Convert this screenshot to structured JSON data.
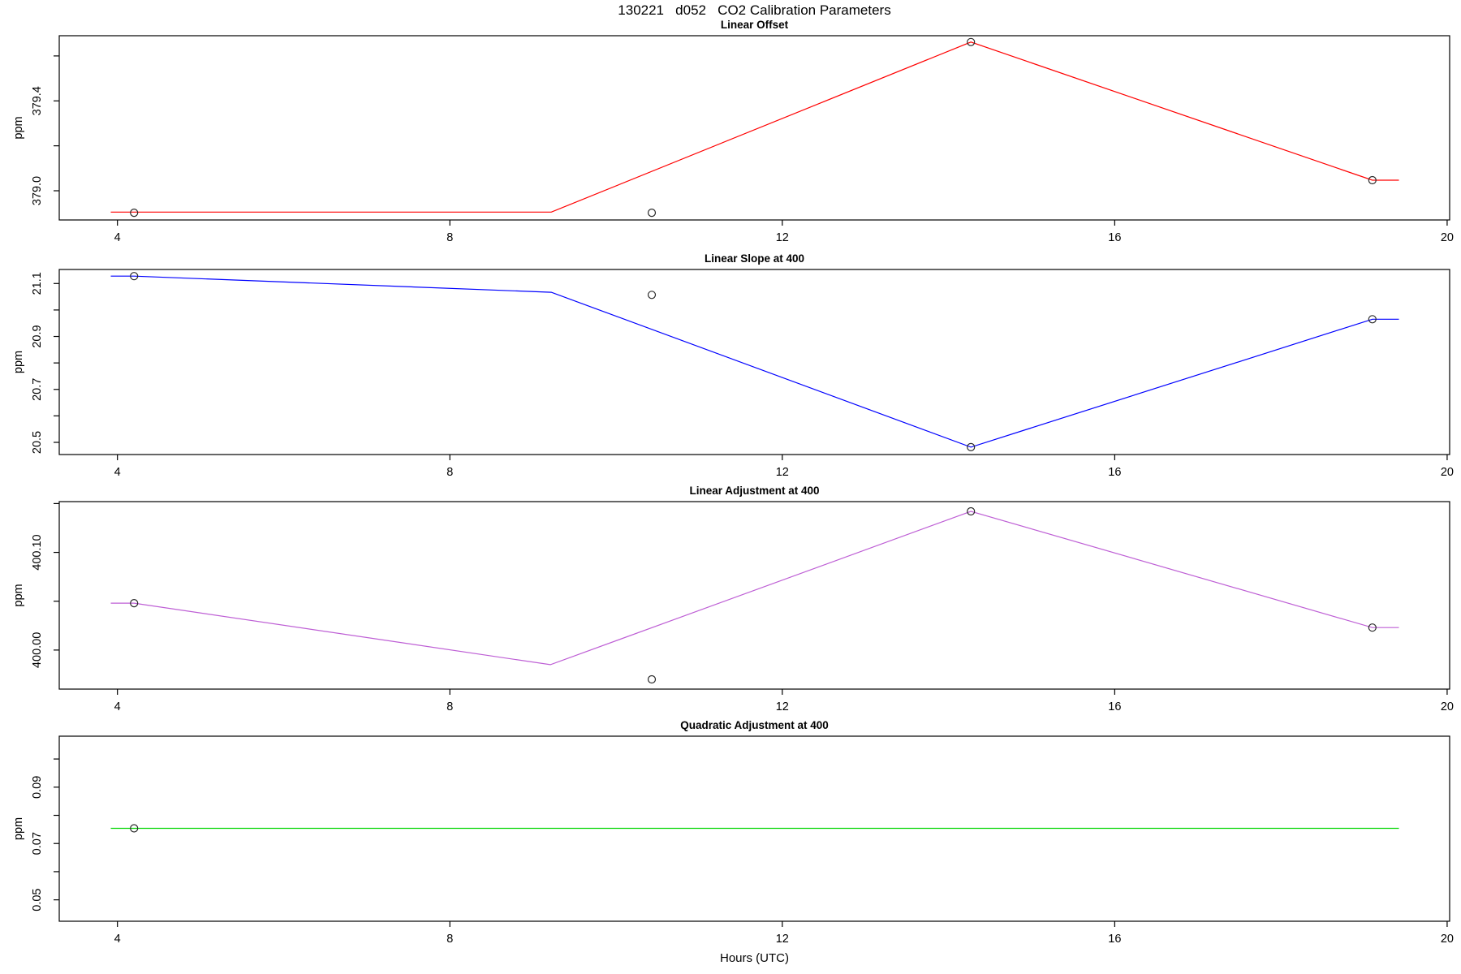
{
  "title": "130221   d052   CO2 Calibration Parameters",
  "xlabel": "Hours (UTC)",
  "chart_data": [
    {
      "type": "line",
      "title": "Linear Offset",
      "ylabel": "ppm",
      "line_color": "#ff0000",
      "point_color": "#2a2a2a",
      "grid": "off",
      "xlim": [
        3.3,
        20.03
      ],
      "ylim": [
        378.87,
        379.69
      ],
      "xticks": [
        {
          "v": 4,
          "label": "4"
        },
        {
          "v": 8,
          "label": "8"
        },
        {
          "v": 12,
          "label": "12"
        },
        {
          "v": 16,
          "label": "16"
        },
        {
          "v": 20,
          "label": "20"
        }
      ],
      "yticks": [
        {
          "v": 379.0,
          "label": "379.0"
        },
        {
          "v": 379.2,
          "label": ""
        },
        {
          "v": 379.4,
          "label": "379.4"
        },
        {
          "v": 379.6,
          "label": ""
        }
      ],
      "line_points": [
        [
          3.92,
          378.905
        ],
        [
          9.22,
          378.905
        ],
        [
          14.27,
          379.662
        ],
        [
          19.1,
          379.047
        ],
        [
          19.42,
          379.047
        ]
      ],
      "markers": [
        [
          4.2,
          378.902
        ],
        [
          10.43,
          378.902
        ],
        [
          14.27,
          379.662
        ],
        [
          19.1,
          379.047
        ]
      ]
    },
    {
      "type": "line",
      "title": "Linear Slope at 400",
      "ylabel": "ppm",
      "line_color": "#0000ff",
      "point_color": "#2a2a2a",
      "grid": "off",
      "xlim": [
        3.3,
        20.03
      ],
      "ylim": [
        20.454,
        21.153
      ],
      "xticks": [
        {
          "v": 4,
          "label": "4"
        },
        {
          "v": 8,
          "label": "8"
        },
        {
          "v": 12,
          "label": "12"
        },
        {
          "v": 16,
          "label": "16"
        },
        {
          "v": 20,
          "label": "20"
        }
      ],
      "yticks": [
        {
          "v": 20.5,
          "label": "20.5"
        },
        {
          "v": 20.6,
          "label": ""
        },
        {
          "v": 20.7,
          "label": "20.7"
        },
        {
          "v": 20.8,
          "label": ""
        },
        {
          "v": 20.9,
          "label": "20.9"
        },
        {
          "v": 21.0,
          "label": ""
        },
        {
          "v": 21.1,
          "label": "21.1"
        }
      ],
      "line_points": [
        [
          3.92,
          21.128
        ],
        [
          4.2,
          21.128
        ],
        [
          9.22,
          21.067
        ],
        [
          14.27,
          20.482
        ],
        [
          19.1,
          20.965
        ],
        [
          19.42,
          20.965
        ]
      ],
      "markers": [
        [
          4.2,
          21.128
        ],
        [
          10.43,
          21.057
        ],
        [
          14.27,
          20.482
        ],
        [
          19.1,
          20.965
        ]
      ]
    },
    {
      "type": "line",
      "title": "Linear Adjustment at 400",
      "ylabel": "ppm",
      "line_color": "#be5fd5",
      "point_color": "#2a2a2a",
      "grid": "off",
      "xlim": [
        3.3,
        20.03
      ],
      "ylim": [
        399.96,
        400.152
      ],
      "xticks": [
        {
          "v": 4,
          "label": "4"
        },
        {
          "v": 8,
          "label": "8"
        },
        {
          "v": 12,
          "label": "12"
        },
        {
          "v": 16,
          "label": "16"
        },
        {
          "v": 20,
          "label": "20"
        }
      ],
      "yticks": [
        {
          "v": 400.0,
          "label": "400.00"
        },
        {
          "v": 400.05,
          "label": ""
        },
        {
          "v": 400.1,
          "label": "400.10"
        },
        {
          "v": 400.15,
          "label": ""
        }
      ],
      "line_points": [
        [
          3.92,
          400.048
        ],
        [
          4.2,
          400.048
        ],
        [
          9.21,
          399.985
        ],
        [
          14.27,
          400.142
        ],
        [
          19.1,
          400.023
        ],
        [
          19.42,
          400.023
        ]
      ],
      "markers": [
        [
          4.2,
          400.048
        ],
        [
          10.43,
          399.97
        ],
        [
          14.27,
          400.142
        ],
        [
          19.1,
          400.023
        ]
      ]
    },
    {
      "type": "line",
      "title": "Quadratic Adjustment at 400",
      "ylabel": "ppm",
      "line_color": "#00d500",
      "point_color": "#2a2a2a",
      "grid": "off",
      "xlim": [
        3.3,
        20.03
      ],
      "ylim": [
        0.0424,
        0.1081
      ],
      "xticks": [
        {
          "v": 4,
          "label": "4"
        },
        {
          "v": 8,
          "label": "8"
        },
        {
          "v": 12,
          "label": "12"
        },
        {
          "v": 16,
          "label": "16"
        },
        {
          "v": 20,
          "label": "20"
        }
      ],
      "yticks": [
        {
          "v": 0.05,
          "label": "0.05"
        },
        {
          "v": 0.06,
          "label": ""
        },
        {
          "v": 0.07,
          "label": "0.07"
        },
        {
          "v": 0.08,
          "label": ""
        },
        {
          "v": 0.09,
          "label": "0.09"
        },
        {
          "v": 0.1,
          "label": ""
        }
      ],
      "line_points": [
        [
          3.92,
          0.0754
        ],
        [
          19.42,
          0.0754
        ]
      ],
      "markers": [
        [
          4.2,
          0.0754
        ]
      ]
    }
  ]
}
